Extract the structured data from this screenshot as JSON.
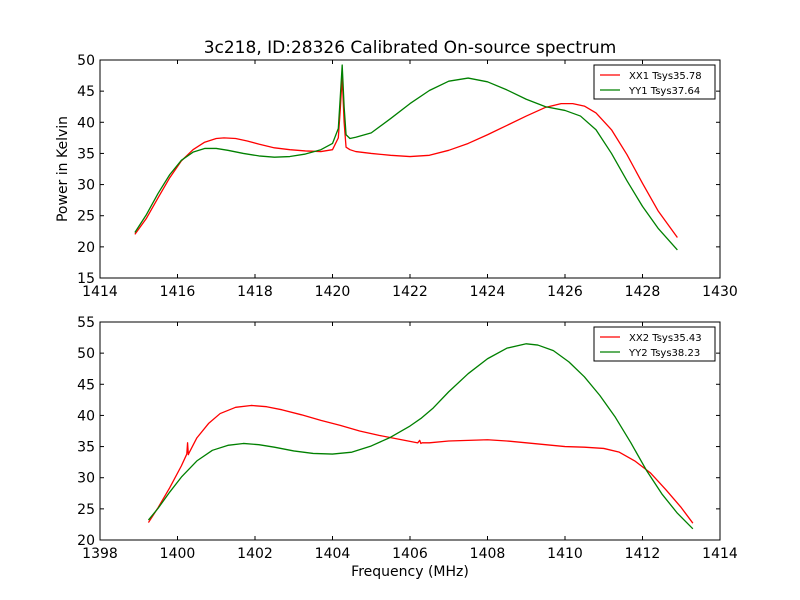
{
  "title": "3c218, ID:28326 Calibrated On-source spectrum",
  "chart_data": [
    {
      "type": "line",
      "title": "3c218, ID:28326 Calibrated On-source spectrum",
      "xlabel": "",
      "ylabel": "Power in Kelvin",
      "xlim": [
        1414,
        1430
      ],
      "ylim": [
        15,
        50
      ],
      "xticks": [
        1414,
        1416,
        1418,
        1420,
        1422,
        1424,
        1426,
        1428,
        1430
      ],
      "yticks": [
        15,
        20,
        25,
        30,
        35,
        40,
        45,
        50
      ],
      "grid": false,
      "legend_position": "top-right",
      "series": [
        {
          "name": "XX1 Tsys35.78",
          "color": "#ff0000",
          "x": [
            1414.9,
            1415.2,
            1415.5,
            1415.8,
            1416.1,
            1416.4,
            1416.7,
            1417.0,
            1417.2,
            1417.5,
            1417.8,
            1418.1,
            1418.5,
            1418.9,
            1419.3,
            1419.7,
            1420.0,
            1420.15,
            1420.2,
            1420.25,
            1420.3,
            1420.35,
            1420.45,
            1420.6,
            1421.0,
            1421.5,
            1422.0,
            1422.5,
            1423.0,
            1423.5,
            1424.0,
            1424.5,
            1425.0,
            1425.5,
            1425.9,
            1426.2,
            1426.5,
            1426.8,
            1427.2,
            1427.6,
            1428.0,
            1428.4,
            1428.9
          ],
          "y": [
            22.0,
            24.6,
            27.9,
            31.1,
            33.8,
            35.6,
            36.8,
            37.4,
            37.5,
            37.4,
            37.0,
            36.5,
            35.9,
            35.6,
            35.4,
            35.3,
            35.6,
            37.5,
            42.0,
            47.3,
            40.0,
            36.0,
            35.6,
            35.3,
            35.0,
            34.7,
            34.5,
            34.7,
            35.5,
            36.6,
            38.0,
            39.5,
            41.0,
            42.4,
            43.0,
            43.0,
            42.6,
            41.5,
            38.8,
            34.8,
            30.2,
            25.8,
            21.5
          ]
        },
        {
          "name": "YY1 Tsys37.64",
          "color": "#008000",
          "x": [
            1414.9,
            1415.2,
            1415.5,
            1415.8,
            1416.1,
            1416.4,
            1416.7,
            1417.0,
            1417.3,
            1417.7,
            1418.1,
            1418.5,
            1418.9,
            1419.3,
            1419.7,
            1420.0,
            1420.15,
            1420.2,
            1420.25,
            1420.3,
            1420.35,
            1420.45,
            1420.6,
            1421.0,
            1421.5,
            1422.0,
            1422.5,
            1423.0,
            1423.5,
            1424.0,
            1424.5,
            1425.0,
            1425.5,
            1426.0,
            1426.4,
            1426.8,
            1427.2,
            1427.6,
            1428.0,
            1428.4,
            1428.9
          ],
          "y": [
            22.3,
            25.2,
            28.6,
            31.6,
            33.9,
            35.2,
            35.8,
            35.8,
            35.5,
            35.0,
            34.6,
            34.4,
            34.5,
            34.9,
            35.6,
            36.6,
            39.0,
            44.0,
            49.2,
            42.5,
            38.0,
            37.4,
            37.6,
            38.3,
            40.6,
            43.0,
            45.1,
            46.6,
            47.1,
            46.5,
            45.2,
            43.7,
            42.5,
            41.9,
            41.0,
            38.8,
            35.0,
            30.6,
            26.5,
            23.0,
            19.5
          ]
        }
      ]
    },
    {
      "type": "line",
      "title": "",
      "xlabel": "Frequency (MHz)",
      "ylabel": "",
      "xlim": [
        1398,
        1414
      ],
      "ylim": [
        20,
        55
      ],
      "xticks": [
        1398,
        1400,
        1402,
        1404,
        1406,
        1408,
        1410,
        1412,
        1414
      ],
      "yticks": [
        20,
        25,
        30,
        35,
        40,
        45,
        50,
        55
      ],
      "grid": false,
      "legend_position": "top-right",
      "series": [
        {
          "name": "XX2 Tsys35.43",
          "color": "#ff0000",
          "x": [
            1399.25,
            1399.5,
            1399.8,
            1400.1,
            1400.24,
            1400.26,
            1400.28,
            1400.3,
            1400.5,
            1400.8,
            1401.1,
            1401.5,
            1401.9,
            1402.3,
            1402.7,
            1403.2,
            1403.7,
            1404.2,
            1404.7,
            1405.2,
            1405.7,
            1406.2,
            1406.25,
            1406.28,
            1406.31,
            1406.5,
            1407.0,
            1407.5,
            1408.0,
            1408.5,
            1409.0,
            1409.5,
            1410.0,
            1410.5,
            1411.0,
            1411.4,
            1411.8,
            1412.2,
            1412.6,
            1413.0,
            1413.3
          ],
          "y": [
            22.8,
            25.2,
            28.4,
            31.9,
            33.8,
            35.6,
            33.7,
            34.0,
            36.4,
            38.7,
            40.3,
            41.3,
            41.6,
            41.4,
            40.9,
            40.1,
            39.2,
            38.4,
            37.5,
            36.8,
            36.2,
            35.6,
            36.0,
            35.5,
            35.6,
            35.6,
            35.9,
            36.0,
            36.1,
            35.9,
            35.6,
            35.3,
            35.0,
            34.9,
            34.7,
            34.1,
            32.7,
            30.8,
            28.1,
            25.2,
            22.7
          ]
        },
        {
          "name": "YY2 Tsys38.23",
          "color": "#008000",
          "x": [
            1399.25,
            1399.5,
            1399.8,
            1400.1,
            1400.5,
            1400.9,
            1401.3,
            1401.7,
            1402.1,
            1402.5,
            1403.0,
            1403.5,
            1404.0,
            1404.5,
            1405.0,
            1405.5,
            1406.0,
            1406.3,
            1406.6,
            1407.0,
            1407.5,
            1408.0,
            1408.5,
            1409.0,
            1409.3,
            1409.7,
            1410.1,
            1410.5,
            1410.9,
            1411.3,
            1411.7,
            1412.1,
            1412.5,
            1412.9,
            1413.3
          ],
          "y": [
            23.2,
            25.1,
            27.7,
            30.1,
            32.7,
            34.4,
            35.2,
            35.5,
            35.3,
            34.9,
            34.3,
            33.9,
            33.8,
            34.1,
            35.1,
            36.5,
            38.3,
            39.6,
            41.2,
            43.8,
            46.7,
            49.1,
            50.8,
            51.5,
            51.3,
            50.4,
            48.6,
            46.2,
            43.2,
            39.7,
            35.6,
            31.2,
            27.4,
            24.3,
            21.8
          ]
        }
      ]
    }
  ]
}
